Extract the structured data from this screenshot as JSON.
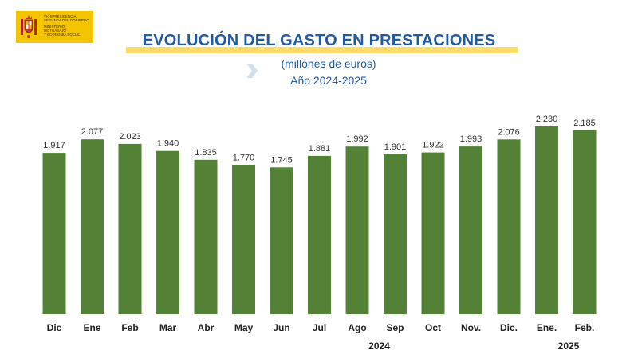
{
  "logo": {
    "lines_top": [
      "VICEPRESIDENCIA",
      "SEGUNDA DEL GOBIERNO"
    ],
    "lines_bottom": [
      "MINISTERIO",
      "DE TRABAJO",
      "Y ECONOMÍA SOCIAL"
    ]
  },
  "header": {
    "title": "EVOLUCIÓN DEL GASTO EN PRESTACIONES",
    "subtitle_units": "(millones de euros)",
    "subtitle_period": "Año 2024-2025"
  },
  "colors": {
    "bar": "#538135",
    "title": "#1f5aa3",
    "title_bar": "#f9dc6a"
  },
  "chart_data": {
    "type": "bar",
    "title": "EVOLUCIÓN DEL GASTO EN PRESTACIONES",
    "subtitle": "(millones de euros) Año 2024-2025",
    "categories": [
      "Dic",
      "Ene",
      "Feb",
      "Mar",
      "Abr",
      "May",
      "Jun",
      "Jul",
      "Ago",
      "Sep",
      "Oct",
      "Nov.",
      "Dic.",
      "Ene.",
      "Feb."
    ],
    "values": [
      1917,
      2077,
      2023,
      1940,
      1835,
      1770,
      1745,
      1881,
      1992,
      1901,
      1922,
      1993,
      2076,
      2230,
      2185
    ],
    "value_labels": [
      "1.917",
      "2.077",
      "2.023",
      "1.940",
      "1.835",
      "1.770",
      "1.745",
      "1.881",
      "1.992",
      "1.901",
      "1.922",
      "1.993",
      "2.076",
      "2.230",
      "2.185"
    ],
    "year_labels": [
      {
        "text": "2024",
        "under": "Sep"
      },
      {
        "text": "2025",
        "under": "Feb."
      }
    ],
    "ylim": [
      0,
      2230
    ],
    "grid": false,
    "legend": "none"
  }
}
